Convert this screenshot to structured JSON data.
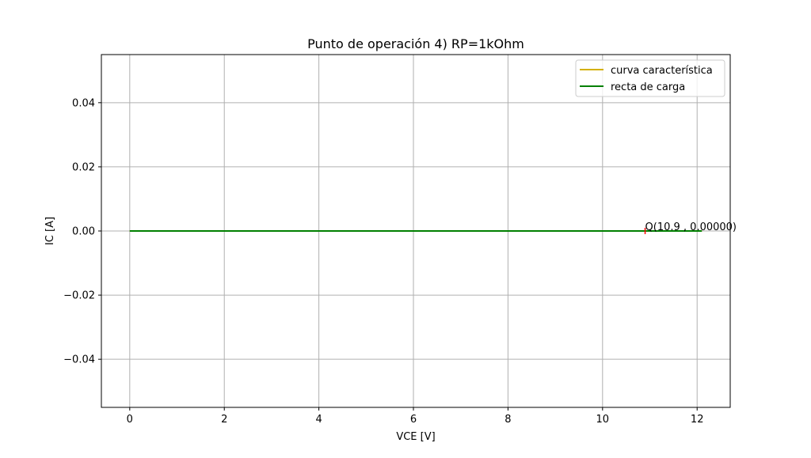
{
  "chart_data": {
    "type": "line",
    "title": "Punto de operación 4) RP=1kOhm",
    "xlabel": "VCE [V]",
    "ylabel": "IC [A]",
    "xlim": [
      -0.6,
      12.7
    ],
    "ylim": [
      -0.055,
      0.055
    ],
    "x_ticks": [
      0,
      2,
      4,
      6,
      8,
      10,
      12
    ],
    "y_ticks": [
      -0.04,
      -0.02,
      0.0,
      0.02,
      0.04
    ],
    "x_tick_labels": [
      "0",
      "2",
      "4",
      "6",
      "8",
      "10",
      "12"
    ],
    "y_tick_labels": [
      "−0.04",
      "−0.02",
      "0.00",
      "0.02",
      "0.04"
    ],
    "grid": true,
    "legend_position": "top-right",
    "series": [
      {
        "name": "curva característica",
        "color": "#d4b000",
        "x": [
          0,
          12.1
        ],
        "y": [
          0,
          0
        ]
      },
      {
        "name": "recta de carga",
        "color": "#008000",
        "x": [
          0,
          12.1
        ],
        "y": [
          0,
          0
        ]
      }
    ],
    "operating_point": {
      "x": 10.9,
      "y": 0.0,
      "label": "Q(10.9 , 0.00000)",
      "color": "#ff0000"
    }
  }
}
